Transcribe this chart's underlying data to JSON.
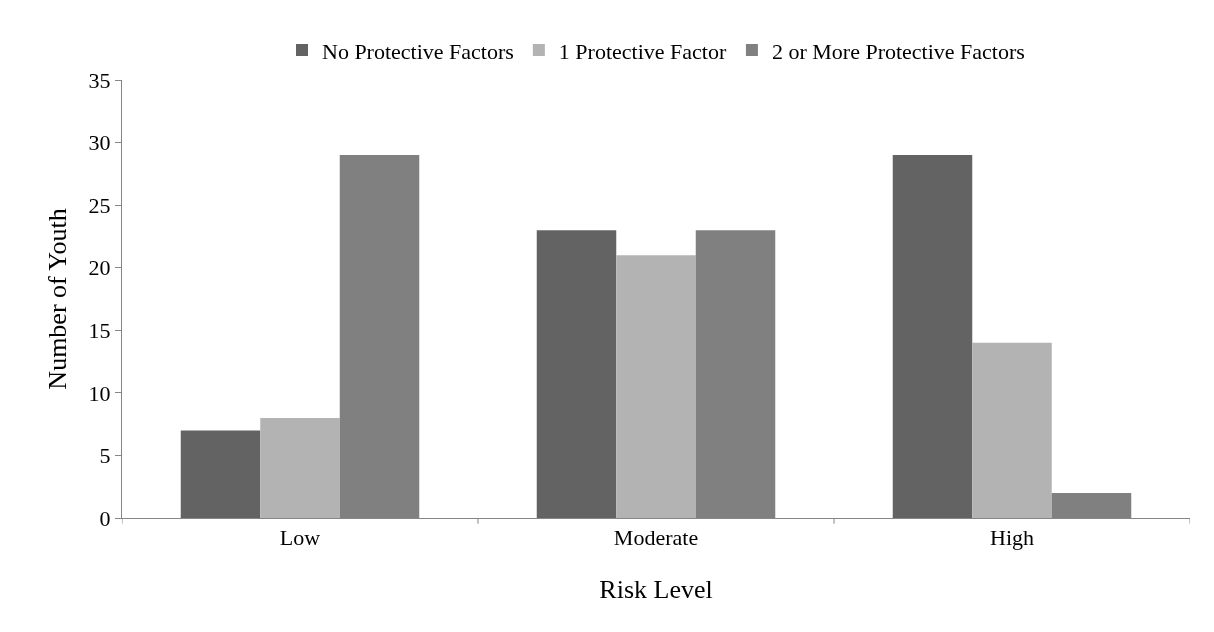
{
  "chart_data": {
    "type": "bar",
    "xlabel": "Risk Level",
    "ylabel": "Number of Youth",
    "categories": [
      "Low",
      "Moderate",
      "High"
    ],
    "series": [
      {
        "name": "No Protective Factors",
        "color": "#636363",
        "values": [
          7,
          23,
          29
        ]
      },
      {
        "name": "1 Protective Factor",
        "color": "#b3b3b3",
        "values": [
          8,
          21,
          14
        ]
      },
      {
        "name": "2 or More Protective Factors",
        "color": "#808080",
        "values": [
          29,
          23,
          2
        ]
      }
    ],
    "ylim": [
      0,
      35
    ],
    "yticks": [
      0,
      5,
      10,
      15,
      20,
      25,
      30,
      35
    ],
    "grid": false,
    "legend": "top"
  }
}
